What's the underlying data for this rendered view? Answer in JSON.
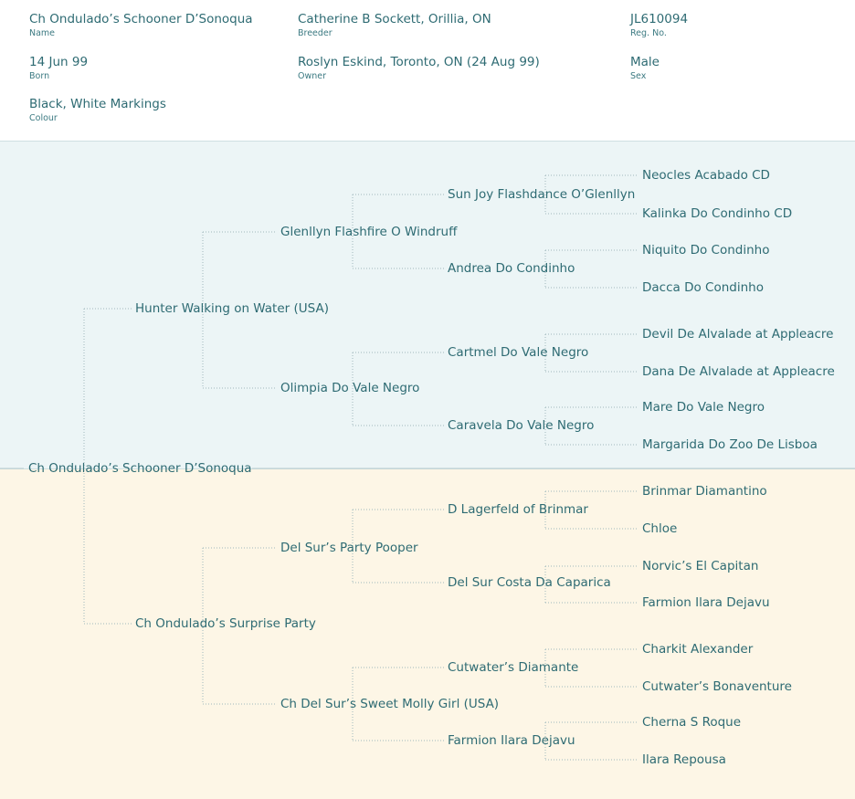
{
  "header": {
    "name": {
      "value": "Ch Ondulado’s Schooner D’Sonoqua",
      "label": "Name"
    },
    "breeder": {
      "value": "Catherine B Sockett, Orillia, ON",
      "label": "Breeder"
    },
    "reg_no": {
      "value": "JL610094",
      "label": "Reg. No."
    },
    "born": {
      "value": "14 Jun 99",
      "label": "Born"
    },
    "owner": {
      "value": "Roslyn  Eskind, Toronto, ON (24 Aug 99)",
      "label": "Owner"
    },
    "sex": {
      "value": "Male",
      "label": "Sex"
    },
    "colour": {
      "value": "Black, White Markings",
      "label": "Colour"
    }
  },
  "pedigree": {
    "subject": "Ch Ondulado’s Schooner D’Sonoqua",
    "sire": "Hunter Walking on Water (USA)",
    "dam": "Ch Ondulado’s Surprise Party",
    "sire_sire": "Glenllyn Flashfire O Windruff",
    "sire_dam": "Olimpia Do Vale Negro",
    "dam_sire": "Del Sur’s Party Pooper",
    "dam_dam": "Ch Del Sur’s Sweet Molly Girl (USA)",
    "gen3": [
      "Sun Joy Flashdance O’Glenllyn",
      "Andrea Do Condinho",
      "Cartmel Do Vale Negro",
      "Caravela Do Vale Negro",
      "D Lagerfeld of Brinmar",
      "Del Sur Costa Da Caparica",
      "Cutwater’s Diamante",
      "Farmion Ilara Dejavu"
    ],
    "gen4": [
      "Neocles Acabado CD",
      "Kalinka Do Condinho CD",
      "Niquito Do Condinho",
      "Dacca Do Condinho",
      "Devil De Alvalade at Appleacre",
      "Dana De Alvalade at Appleacre",
      "Mare Do Vale Negro",
      "Margarida Do Zoo De Lisboa",
      "Brinmar Diamantino",
      "Chloe",
      "Norvic’s El Capitan",
      "Farmion Ilara Dejavu",
      "Charkit Alexander",
      "Cutwater’s Bonaventure",
      "Cherna S Roque",
      "Ilara Repousa"
    ]
  }
}
